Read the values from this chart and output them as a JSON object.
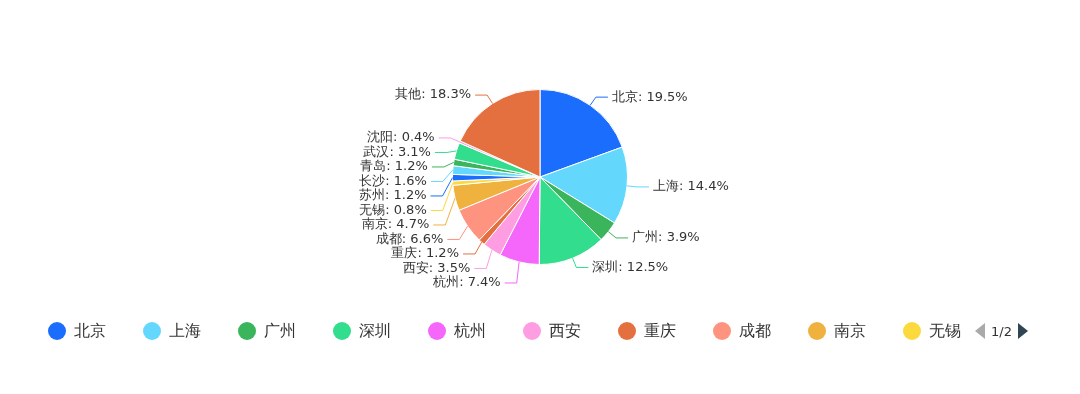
{
  "chart_data": {
    "type": "pie",
    "categories": [
      "北京",
      "上海",
      "广州",
      "深圳",
      "杭州",
      "西安",
      "重庆",
      "成都",
      "南京",
      "无锡",
      "苏州",
      "长沙",
      "青岛",
      "武汉",
      "沈阳",
      "其他"
    ],
    "values": [
      19.5,
      14.4,
      3.9,
      12.5,
      7.4,
      3.5,
      1.2,
      6.6,
      4.7,
      0.8,
      1.2,
      1.6,
      1.2,
      3.1,
      0.4,
      18.3
    ],
    "colors": [
      "#1b6dfd",
      "#63d8fc",
      "#3bb55c",
      "#32dd8d",
      "#f566fb",
      "#ff9de2",
      "#e5703f",
      "#fe937f",
      "#efb23f",
      "#fcd93c",
      "#1b6dfd",
      "#63d8fc",
      "#3bb55c",
      "#32dd8d",
      "#ff9de2",
      "#e5703f"
    ],
    "value_labels": [
      ": 19.5%",
      ": 14.4%",
      ": 3.9%",
      ": 12.5%",
      ": 7.4%",
      ": 3.5%",
      ": 1.2%",
      ": 6.6%",
      ": 4.7%",
      ": 0.8%",
      ": 1.2%",
      ": 1.6%",
      ": 1.2%",
      ": 3.1%",
      ": 0.4%",
      ": 18.3%"
    ],
    "legend": "bottom",
    "annotations": [
      "1/2"
    ]
  }
}
